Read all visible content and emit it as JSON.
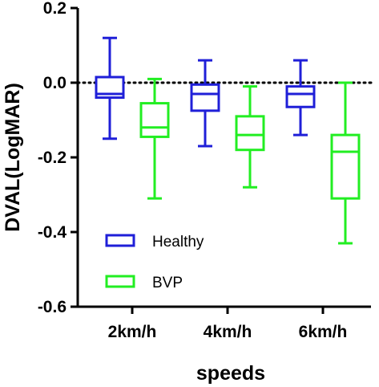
{
  "chart_data": {
    "type": "boxplot",
    "xlabel": "speeds",
    "ylabel": "DVAL(LogMAR)",
    "ylim": [
      -0.6,
      0.2
    ],
    "yticks": [
      0.2,
      0.0,
      -0.2,
      -0.4,
      -0.6
    ],
    "ytick_labels": [
      "0.2",
      "0.0",
      "-0.2",
      "-0.4",
      "-0.6"
    ],
    "categories": [
      "2km/h",
      "4km/h",
      "6km/h"
    ],
    "reference_line": 0.0,
    "legend_position": "bottom-left",
    "series": [
      {
        "name": "Healthy",
        "color": "#1f1fd8",
        "boxes": [
          {
            "min": -0.15,
            "q1": -0.04,
            "median": -0.03,
            "q3": 0.015,
            "max": 0.12
          },
          {
            "min": -0.17,
            "q1": -0.075,
            "median": -0.03,
            "q3": -0.005,
            "max": 0.06
          },
          {
            "min": -0.14,
            "q1": -0.065,
            "median": -0.03,
            "q3": -0.01,
            "max": 0.06
          }
        ]
      },
      {
        "name": "BVP",
        "color": "#22ee22",
        "boxes": [
          {
            "min": -0.31,
            "q1": -0.145,
            "median": -0.12,
            "q3": -0.055,
            "max": 0.01
          },
          {
            "min": -0.28,
            "q1": -0.18,
            "median": -0.14,
            "q3": -0.09,
            "max": -0.01
          },
          {
            "min": -0.43,
            "q1": -0.31,
            "median": -0.185,
            "q3": -0.14,
            "max": 0.0
          }
        ]
      }
    ]
  }
}
